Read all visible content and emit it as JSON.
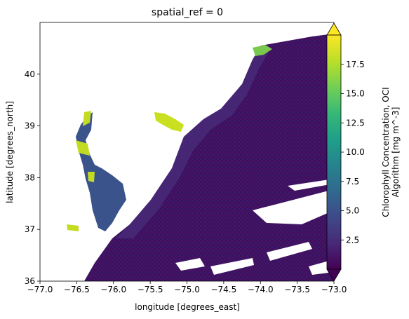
{
  "chart_data": {
    "type": "heatmap",
    "title": "spatial_ref = 0",
    "xlabel": "longitude [degrees_east]",
    "ylabel": "latitude [degrees_north]",
    "xlim": [
      -77.0,
      -73.0
    ],
    "ylim": [
      36.0,
      41.0
    ],
    "xticks": [
      -77.0,
      -76.5,
      -76.0,
      -75.5,
      -75.0,
      -74.5,
      -74.0,
      -73.5,
      -73.0
    ],
    "xtick_labels": [
      "−77.0",
      "−76.5",
      "−76.0",
      "−75.5",
      "−75.0",
      "−74.5",
      "−74.0",
      "−73.5",
      "−73.0"
    ],
    "yticks": [
      36,
      37,
      38,
      39,
      40
    ],
    "ytick_labels": [
      "36",
      "37",
      "38",
      "39",
      "40"
    ],
    "colorbar": {
      "label_lines": [
        "Chlorophyll Concentration, OCI",
        "Algorithm [mg m^-3]"
      ],
      "range": [
        0.0,
        20.0
      ],
      "extend": "both",
      "ticks": [
        2.5,
        5.0,
        7.5,
        10.0,
        12.5,
        15.0,
        17.5
      ],
      "tick_labels": [
        "2.5",
        "5.0",
        "7.5",
        "10.0",
        "12.5",
        "15.0",
        "17.5"
      ],
      "colormap": "viridis",
      "colors": [
        "#440154",
        "#482878",
        "#3e4989",
        "#31688e",
        "#26828e",
        "#1f9e89",
        "#35b779",
        "#6ece58",
        "#b5de2b",
        "#fde725"
      ]
    },
    "regions": {
      "open_ocean": {
        "value": 1.0,
        "description_value_range": [
          0.5,
          2.0
        ]
      },
      "shelf_waters": {
        "value": 3.0
      },
      "chesapeake_bay": {
        "value": 5.0
      },
      "delaware_bay_coast": {
        "value": 15.0
      }
    },
    "land_color": "#ffffff",
    "no_data_color": "#ffffff"
  }
}
